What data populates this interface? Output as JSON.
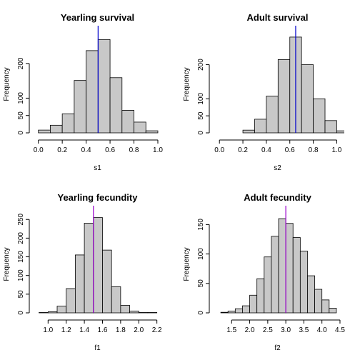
{
  "chart_data": [
    {
      "type": "histogram",
      "title": "Yearling survival",
      "x_label": "s1",
      "y_label": "Frequency",
      "bins": [
        0.0,
        0.1,
        0.2,
        0.3,
        0.4,
        0.5,
        0.6,
        0.7,
        0.8,
        0.9,
        1.0
      ],
      "values": [
        8,
        22,
        55,
        151,
        237,
        269,
        159,
        65,
        31,
        6
      ],
      "color": "#c8c8c8",
      "reference_line": 0.5,
      "reference_color": "#0000cc",
      "xlim": [
        -0.04,
        1.03
      ],
      "xticks": [
        {
          "value": 0,
          "label": "0.0"
        },
        0.2,
        0.4,
        0.6,
        0.8,
        {
          "value": 1,
          "label": "1.0"
        }
      ],
      "ylim": [
        0,
        280
      ],
      "yticks": [
        0,
        50,
        100,
        200
      ]
    },
    {
      "type": "histogram",
      "title": "Adult survival",
      "x_label": "s2",
      "y_label": "Frequency",
      "bins": [
        0.2,
        0.3,
        0.4,
        0.5,
        0.6,
        0.7,
        0.8,
        0.9,
        1.0,
        1.1
      ],
      "values": [
        8,
        40,
        108,
        215,
        281,
        200,
        100,
        36,
        6
      ],
      "color": "#c8c8c8",
      "reference_line": 0.65,
      "reference_color": "#0000cc",
      "xlim": [
        -0.05,
        1.04
      ],
      "xticks": [
        {
          "value": 0,
          "label": "0.0"
        },
        0.2,
        0.4,
        0.6,
        0.8,
        {
          "value": 1,
          "label": "1.0"
        }
      ],
      "ylim": [
        0,
        285
      ],
      "yticks": [
        0,
        50,
        100,
        200
      ]
    },
    {
      "type": "histogram",
      "title": "Yearling fecundity",
      "x_label": "f1",
      "y_label": "Frequency",
      "bins": [
        0.9,
        1.0,
        1.1,
        1.2,
        1.3,
        1.4,
        1.5,
        1.6,
        1.7,
        1.8,
        1.9,
        2.0,
        2.1,
        2.2
      ],
      "values": [
        1,
        3,
        18,
        65,
        155,
        240,
        255,
        168,
        70,
        20,
        5,
        1,
        1
      ],
      "color": "#c8c8c8",
      "reference_line": 1.5,
      "reference_color": "#9900cc",
      "xlim": [
        0.84,
        2.25
      ],
      "xticks": [
        {
          "value": 1,
          "label": "1.0"
        },
        1.2,
        1.4,
        1.6,
        1.8,
        {
          "value": 2,
          "label": "2.0"
        },
        2.2
      ],
      "ylim": [
        0,
        260
      ],
      "yticks": [
        0,
        50,
        100,
        150,
        200,
        250
      ]
    },
    {
      "type": "histogram",
      "title": "Adult fecundity",
      "x_label": "f2",
      "y_label": "Frequency",
      "bins": [
        1.2,
        1.4,
        1.6,
        1.8,
        2.0,
        2.2,
        2.4,
        2.6,
        2.8,
        3.0,
        3.2,
        3.4,
        3.6,
        3.8,
        4.0,
        4.2,
        4.4
      ],
      "values": [
        1,
        3,
        7,
        12,
        30,
        58,
        95,
        130,
        160,
        152,
        128,
        105,
        63,
        40,
        22,
        8
      ],
      "color": "#c8c8c8",
      "reference_line": 3.0,
      "reference_color": "#9900cc",
      "xlim": [
        1.0,
        4.54
      ],
      "xticks": [
        1.5,
        {
          "value": 2,
          "label": "2.0"
        },
        2.5,
        {
          "value": 3,
          "label": "3.0"
        },
        3.5,
        {
          "value": 4,
          "label": "4.0"
        },
        4.5
      ],
      "ylim": [
        0,
        165
      ],
      "yticks": [
        0,
        50,
        100,
        150
      ]
    }
  ]
}
